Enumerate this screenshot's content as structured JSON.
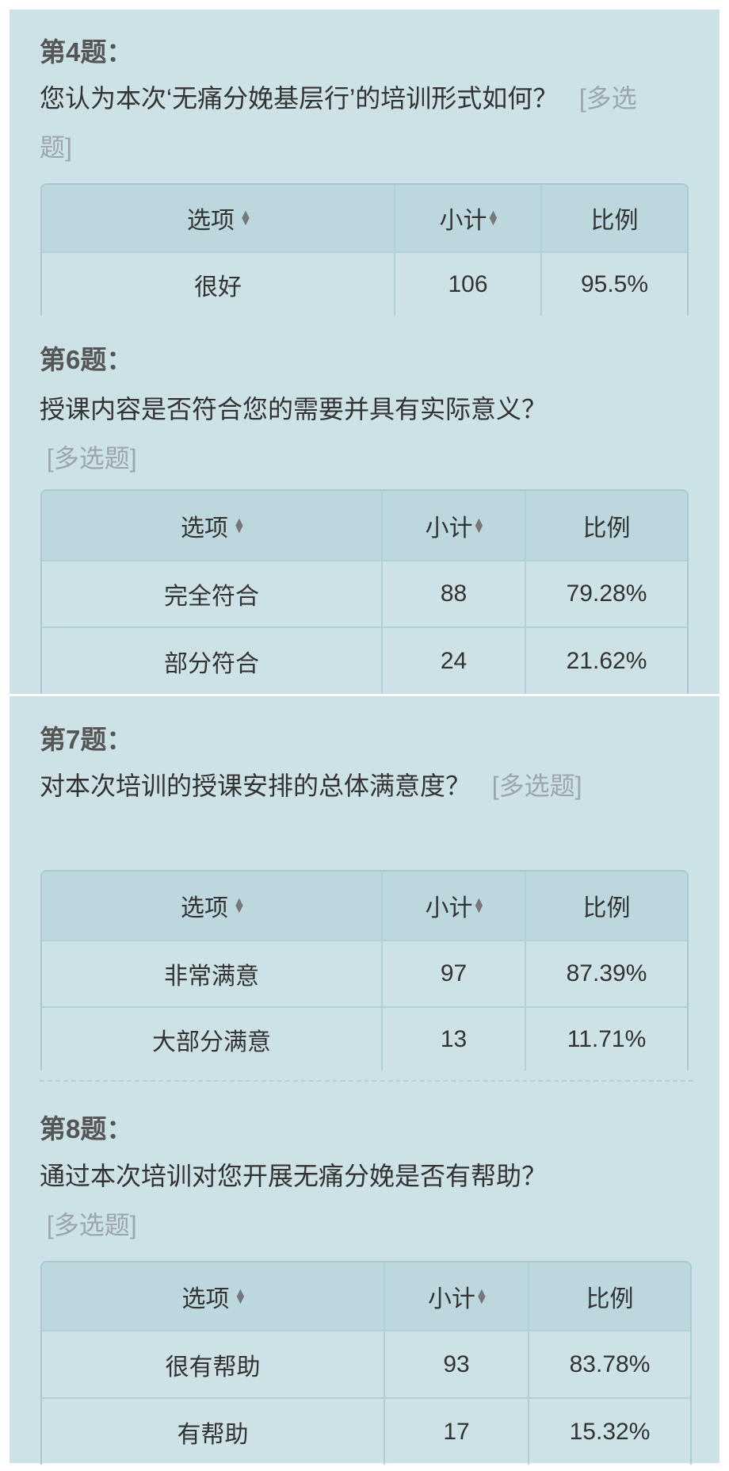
{
  "headers": {
    "option": "选项",
    "count": "小计",
    "ratio": "比例"
  },
  "tag": "[多选题]",
  "questions": [
    {
      "title": "第4题：",
      "text": "您认为本次‘无痛分娩基层行’的培训形式如何？",
      "rows": [
        {
          "option": "很好",
          "count": "106",
          "ratio": "95.5%"
        }
      ]
    },
    {
      "title": "第6题：",
      "text": "授课内容是否符合您的需要并具有实际意义？",
      "rows": [
        {
          "option": "完全符合",
          "count": "88",
          "ratio": "79.28%"
        },
        {
          "option": "部分符合",
          "count": "24",
          "ratio": "21.62%"
        }
      ]
    },
    {
      "title": "第7题：",
      "text": "对本次培训的授课安排的总体满意度？",
      "rows": [
        {
          "option": "非常满意",
          "count": "97",
          "ratio": "87.39%"
        },
        {
          "option": "大部分满意",
          "count": "13",
          "ratio": "11.71%"
        }
      ]
    },
    {
      "title": "第8题：",
      "text": "通过本次培训对您开展无痛分娩是否有帮助？",
      "rows": [
        {
          "option": "很有帮助",
          "count": "93",
          "ratio": "83.78%"
        },
        {
          "option": "有帮助",
          "count": "17",
          "ratio": "15.32%"
        }
      ]
    }
  ],
  "colors": {
    "background": "#cde2e7",
    "header": "#bcd7de",
    "border": "#a9c8d0"
  }
}
